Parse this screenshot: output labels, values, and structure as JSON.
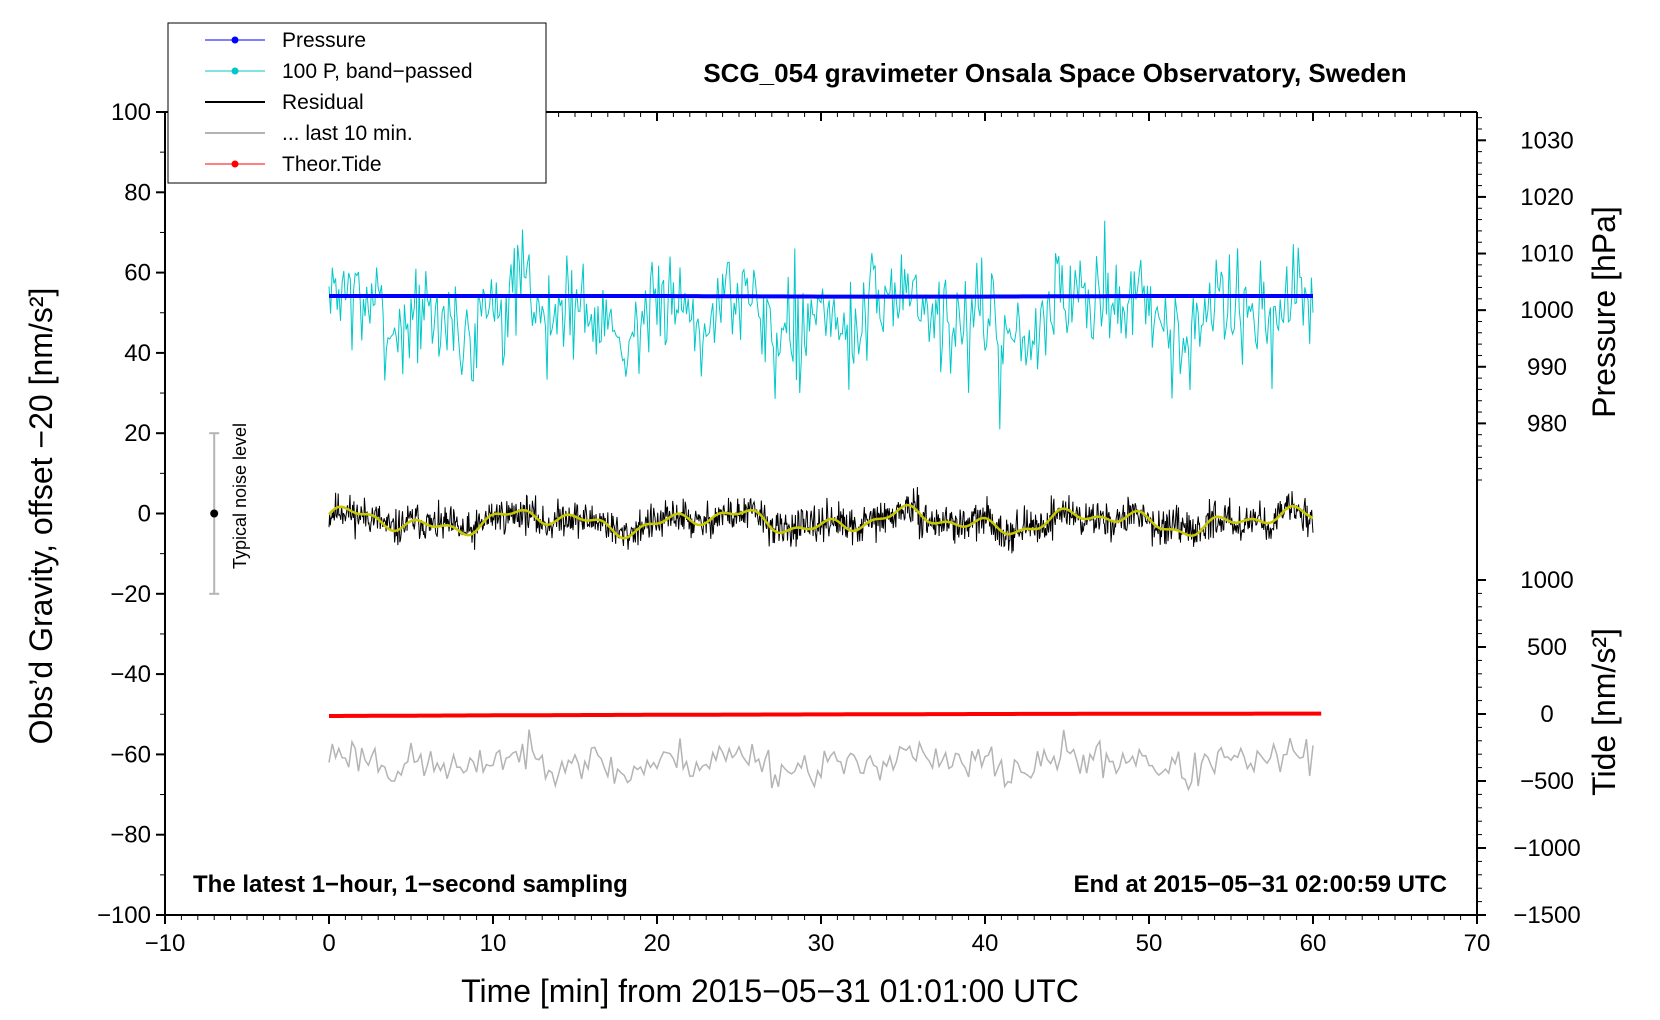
{
  "chart_data": {
    "type": "line",
    "title": "SCG_054 gravimeter Onsala Space Observatory, Sweden",
    "xlabel": "Time [min] from 2015−05−31 01:01:00 UTC",
    "ylabel": "Obs’d Gravity, offset −20 [nm/s²]",
    "y2label": "Pressure [hPa]",
    "y3label": "Tide [nm/s²]",
    "xlim": [
      -10,
      70
    ],
    "ylim": [
      -100,
      100
    ],
    "pressure_lim": [
      970,
      1035
    ],
    "tide_lim": [
      -1500,
      1000
    ],
    "xticks": [
      -10,
      0,
      10,
      20,
      30,
      40,
      50,
      60,
      70
    ],
    "yticks": [
      100,
      80,
      60,
      40,
      20,
      0,
      -20,
      -40,
      -60,
      -80,
      -100
    ],
    "pressure_ticks": [
      1030,
      1020,
      1010,
      1000,
      990,
      980
    ],
    "tide_ticks": [
      1000,
      500,
      0,
      -500,
      -1000,
      -1500
    ],
    "xtick_labels": [
      "−10",
      "0",
      "10",
      "20",
      "30",
      "40",
      "50",
      "60",
      "70"
    ],
    "ytick_labels": [
      "100",
      "80",
      "60",
      "40",
      "20",
      "0",
      "−20",
      "−40",
      "−60",
      "−80",
      "−100"
    ],
    "pressure_tick_labels": [
      "1030",
      "1020",
      "1010",
      "1000",
      "990",
      "980"
    ],
    "tide_tick_labels": [
      "1000",
      "500",
      "0",
      "−500",
      "−1000",
      "−1500"
    ],
    "legend": [
      {
        "label": "Pressure",
        "color": "#0000ff",
        "marker": true
      },
      {
        "label": "100 P, band−passed",
        "color": "#00c8c8",
        "marker": true
      },
      {
        "label": "Residual",
        "color": "#000000",
        "marker": false
      },
      {
        "label": "... last 10 min.",
        "color": "#b4b4b4",
        "marker": false
      },
      {
        "label": "Theor.Tide",
        "color": "#ff0000",
        "marker": true
      }
    ],
    "series": [
      {
        "name": "Pressure",
        "axis": "pressure",
        "color": "#0000ff",
        "x": [
          0,
          10,
          20,
          30,
          40,
          50,
          60
        ],
        "values": [
          1002.5,
          1002.5,
          1002.5,
          1002.4,
          1002.4,
          1002.5,
          1002.5
        ]
      },
      {
        "name": "100 P, band−passed",
        "axis": "gravity",
        "color": "#00c8c8",
        "center": 50,
        "spread": 10,
        "x_range": [
          0,
          60
        ],
        "dips": [
          [
            20.8,
            33
          ],
          [
            28.7,
            30
          ],
          [
            40.9,
            21
          ],
          [
            57.5,
            31
          ]
        ],
        "peaks": [
          [
            20.8,
            64
          ],
          [
            28.4,
            66
          ],
          [
            48.0,
            62
          ],
          [
            56.8,
            63
          ]
        ]
      },
      {
        "name": "Residual",
        "axis": "gravity",
        "color": "#000000",
        "center": -2,
        "spread": 4,
        "x_range": [
          0,
          60
        ]
      },
      {
        "name": "Residual smoothed",
        "axis": "gravity",
        "color": "#c8c800",
        "center": -2,
        "spread": 3,
        "x_range": [
          0,
          60
        ]
      },
      {
        "name": "... last 10 min.",
        "axis": "gravity",
        "color": "#b4b4b4",
        "center": -62,
        "spread": 4,
        "x_range": [
          0,
          60
        ]
      },
      {
        "name": "Theor.Tide",
        "axis": "tide",
        "color": "#ff0000",
        "x": [
          0,
          10,
          20,
          30,
          40,
          50,
          60.5
        ],
        "values": [
          -15,
          -10,
          -6,
          -3,
          0,
          2,
          3
        ]
      }
    ],
    "noise_bar": {
      "x": -7,
      "center": 0,
      "low": -20,
      "high": 20,
      "label": "Typical noise level"
    },
    "annotations": {
      "bottom_left": "The latest 1−hour, 1−second sampling",
      "bottom_right": "End at 2015−05−31 02:00:59 UTC"
    }
  }
}
